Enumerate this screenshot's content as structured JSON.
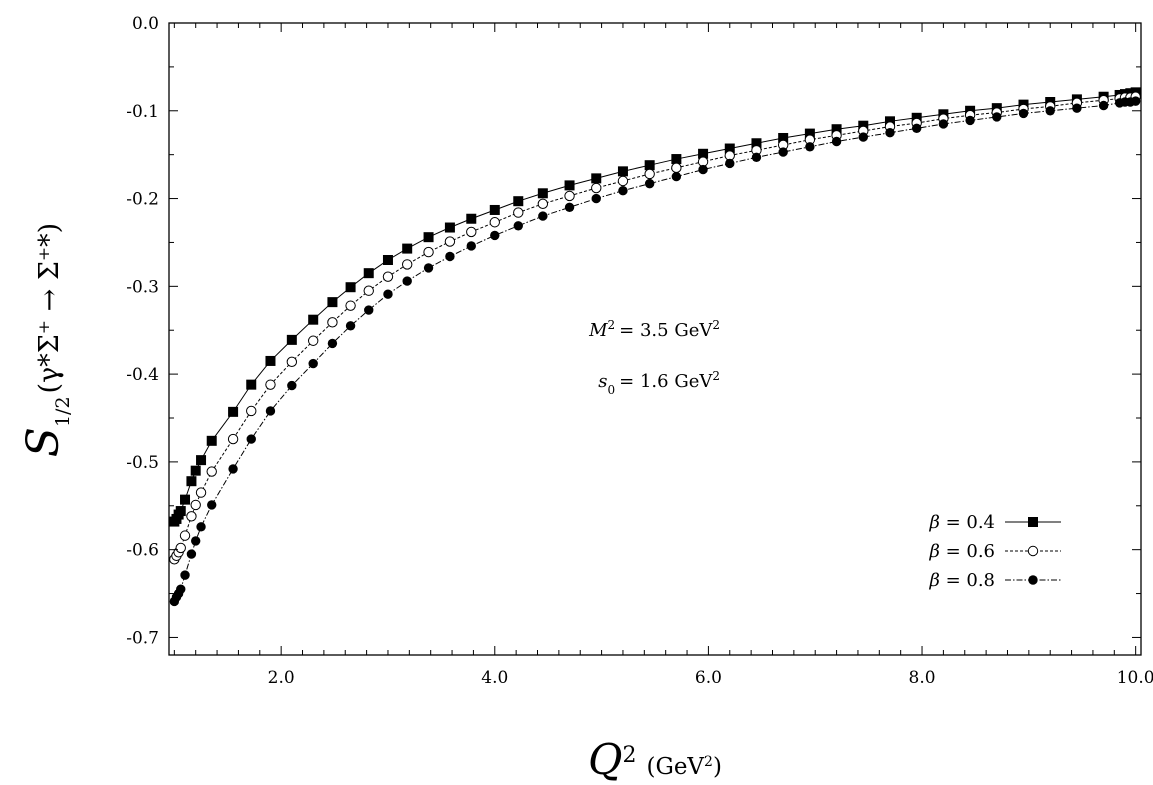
{
  "chart_data": {
    "type": "line",
    "title": "",
    "xlabel": {
      "symbol": "Q",
      "sup": "2",
      "unit": "(GeV",
      "unit_sup": "2",
      "unit_close": ")"
    },
    "ylabel": {
      "symbol": "S",
      "sub": "1/2",
      "expr": "(γ*Σ⁺ → Σ⁺*)"
    },
    "xlim": [
      0.95,
      10.05
    ],
    "ylim": [
      -0.72,
      0.0
    ],
    "xticks": [
      2,
      4,
      6,
      8,
      10
    ],
    "xtick_labels": [
      "2.0",
      "4.0",
      "6.0",
      "8.0",
      "10.0"
    ],
    "yticks": [
      0.0,
      -0.1,
      -0.2,
      -0.3,
      -0.4,
      -0.5,
      -0.6,
      -0.7
    ],
    "ytick_labels": [
      "0.0",
      "-0.1",
      "-0.2",
      "-0.3",
      "-0.4",
      "-0.5",
      "-0.6",
      "-0.7"
    ],
    "grid": false,
    "legend_position": "bottom-right",
    "annotations": [
      {
        "lhs": "M",
        "lhs_sup": "2",
        "rhs": "= 3.5 GeV",
        "rhs_sup": "2"
      },
      {
        "lhs": "s",
        "lhs_sub": "0",
        "rhs": "= 1.6 GeV",
        "rhs_sup": "2"
      }
    ],
    "x": [
      1.0,
      1.02,
      1.04,
      1.06,
      1.1,
      1.16,
      1.2,
      1.25,
      1.35,
      1.55,
      1.72,
      1.9,
      2.1,
      2.3,
      2.48,
      2.65,
      2.82,
      3.0,
      3.18,
      3.38,
      3.58,
      3.78,
      4.0,
      4.22,
      4.45,
      4.7,
      4.95,
      5.2,
      5.45,
      5.7,
      5.95,
      6.2,
      6.45,
      6.7,
      6.95,
      7.2,
      7.45,
      7.7,
      7.95,
      8.2,
      8.45,
      8.7,
      8.95,
      9.2,
      9.45,
      9.7,
      9.85,
      9.9,
      9.95,
      10.0
    ],
    "series": [
      {
        "name": "β = 0.4",
        "marker": "square-filled",
        "line": "solid",
        "values": [
          -0.568,
          -0.565,
          -0.56,
          -0.556,
          -0.543,
          -0.522,
          -0.51,
          -0.498,
          -0.476,
          -0.443,
          -0.412,
          -0.385,
          -0.361,
          -0.338,
          -0.318,
          -0.301,
          -0.285,
          -0.27,
          -0.257,
          -0.244,
          -0.233,
          -0.223,
          -0.213,
          -0.203,
          -0.194,
          -0.185,
          -0.177,
          -0.169,
          -0.162,
          -0.155,
          -0.149,
          -0.143,
          -0.137,
          -0.131,
          -0.126,
          -0.121,
          -0.117,
          -0.112,
          -0.108,
          -0.104,
          -0.1,
          -0.097,
          -0.093,
          -0.09,
          -0.087,
          -0.084,
          -0.082,
          -0.081,
          -0.08,
          -0.079
        ]
      },
      {
        "name": "β = 0.6",
        "marker": "circle-open",
        "line": "dashed",
        "values": [
          -0.611,
          -0.607,
          -0.603,
          -0.598,
          -0.584,
          -0.562,
          -0.549,
          -0.535,
          -0.511,
          -0.474,
          -0.442,
          -0.412,
          -0.386,
          -0.362,
          -0.341,
          -0.322,
          -0.305,
          -0.289,
          -0.275,
          -0.261,
          -0.249,
          -0.238,
          -0.227,
          -0.216,
          -0.206,
          -0.197,
          -0.188,
          -0.18,
          -0.172,
          -0.165,
          -0.158,
          -0.151,
          -0.145,
          -0.139,
          -0.133,
          -0.128,
          -0.123,
          -0.118,
          -0.114,
          -0.109,
          -0.105,
          -0.102,
          -0.098,
          -0.095,
          -0.091,
          -0.088,
          -0.086,
          -0.085,
          -0.085,
          -0.084
        ]
      },
      {
        "name": "β = 0.8",
        "marker": "circle-filled",
        "line": "dashdot",
        "values": [
          -0.659,
          -0.654,
          -0.65,
          -0.645,
          -0.629,
          -0.605,
          -0.59,
          -0.574,
          -0.549,
          -0.508,
          -0.474,
          -0.442,
          -0.413,
          -0.388,
          -0.365,
          -0.345,
          -0.327,
          -0.309,
          -0.294,
          -0.279,
          -0.266,
          -0.254,
          -0.242,
          -0.231,
          -0.22,
          -0.21,
          -0.2,
          -0.191,
          -0.183,
          -0.175,
          -0.167,
          -0.16,
          -0.153,
          -0.147,
          -0.141,
          -0.135,
          -0.13,
          -0.125,
          -0.12,
          -0.115,
          -0.111,
          -0.107,
          -0.103,
          -0.1,
          -0.097,
          -0.094,
          -0.091,
          -0.09,
          -0.09,
          -0.089
        ]
      }
    ]
  }
}
